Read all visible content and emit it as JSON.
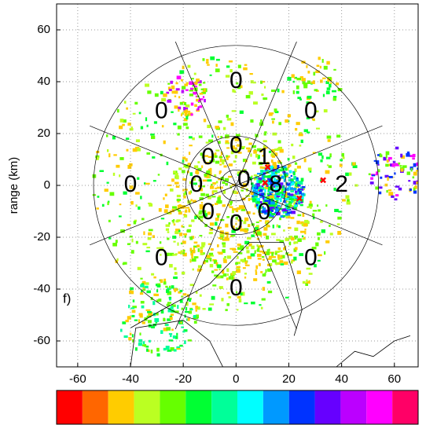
{
  "chart_data": {
    "type": "radar-ppi",
    "ylabel": "range (km)",
    "panel_label": "f)",
    "xlim": [
      -68,
      69
    ],
    "ylim": [
      -70,
      70
    ],
    "xticks": [
      -60,
      -40,
      -20,
      0,
      20,
      40,
      60
    ],
    "yticks": [
      -60,
      -40,
      -20,
      0,
      20,
      40,
      60
    ],
    "grid": true,
    "sector_labels": {
      "outer": [
        "0",
        "0",
        "2",
        "0",
        "0",
        "0",
        "0",
        "0"
      ],
      "middle": [
        "0",
        "1",
        "8",
        "0",
        "0",
        "0",
        "0",
        "0"
      ],
      "center": "0"
    },
    "markers": {
      "x": [
        12,
        11,
        24,
        33
      ],
      "y": [
        7,
        1,
        -5,
        2
      ],
      "color": "#ff0000"
    },
    "colorbar": [
      "#ff0000",
      "#ff6600",
      "#ffcc00",
      "#bbff22",
      "#66ff00",
      "#00ff33",
      "#00ff99",
      "#00ffff",
      "#0099ff",
      "#0033ff",
      "#6600ff",
      "#bb00ff",
      "#ff00ff",
      "#ff0066"
    ]
  }
}
